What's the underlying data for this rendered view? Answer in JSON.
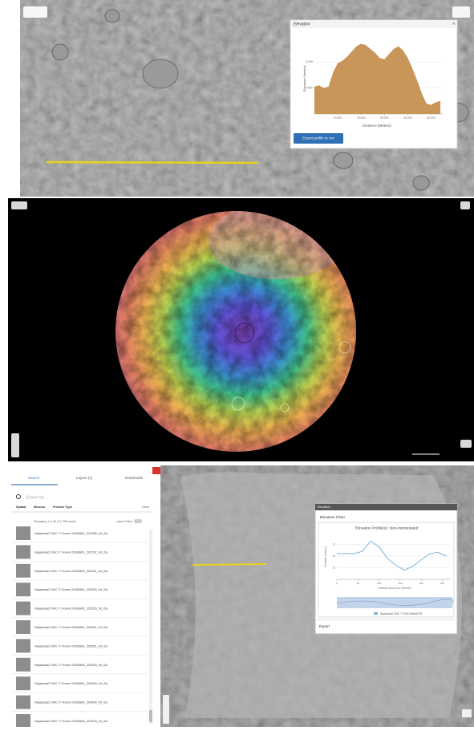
{
  "top_panel": {
    "popup": {
      "title": "Elevation",
      "chart": {
        "type": "area",
        "y_label": "Elevation (Meters)",
        "x_label": "Distance (Meters)",
        "color": "#c9965a",
        "x": [
          0,
          2000,
          4000,
          6000,
          8000,
          10000,
          12000,
          14000,
          16000,
          18000,
          20000,
          22000,
          24000,
          26000,
          28000,
          30000,
          32000,
          34000,
          36000,
          38000,
          40000,
          42000,
          44000,
          46000,
          48000,
          50000,
          52000,
          54000
        ],
        "values": [
          4100,
          4200,
          4000,
          4100,
          5200,
          5900,
          6100,
          6400,
          6800,
          7200,
          7400,
          7300,
          7000,
          6700,
          6300,
          6200,
          6600,
          7000,
          7200,
          6900,
          6300,
          5500,
          4600,
          3600,
          2800,
          2700,
          2900,
          3000
        ],
        "xlim": [
          0,
          55000
        ],
        "ylim": [
          2000,
          7800
        ],
        "xticks": [
          {
            "value": 10000,
            "label": "10,000"
          },
          {
            "value": 20000,
            "label": "20,000"
          },
          {
            "value": 30000,
            "label": "30,000"
          },
          {
            "value": 40000,
            "label": "40,000"
          },
          {
            "value": 50000,
            "label": "50,000"
          }
        ],
        "yticks": [
          {
            "value": 4000,
            "label": "4,000"
          },
          {
            "value": 6000,
            "label": "6,000"
          }
        ]
      },
      "button": "Export profile to csv"
    }
  },
  "bottom_panel": {
    "sidebar": {
      "tabs": [
        "Search",
        "Layers (1)",
        "Downloads"
      ],
      "search_placeholder": "Search for...",
      "filters": [
        "Spatial",
        "Mission",
        "Product Type"
      ],
      "clear": "Clear",
      "results": "Displaying 1 to 25 of 1,798 results",
      "toggle": "Layer Follow",
      "items": [
        "Hayabusa2 ONC-T: Frame 20180801_201555_tvf_l2a",
        "Hayabusa2 ONC-T: Frame 20180801_202157_tvf_l2a",
        "Hayabusa2 ONC-T: Frame 20180801_202151_tvf_l2a",
        "Hayabusa2 ONC-T: Frame 20180801_202525_tvf_l2a",
        "Hayabusa2 ONC-T: Frame 20180801_202525_tvf_l2a",
        "Hayabusa2 ONC-T: Frame 20180801_202821_tvf_l2a",
        "Hayabusa2 ONC-T: Frame 20180801_202821_tvf_l2a",
        "Hayabusa2 ONC-T: Frame 20180801_202549_tvf_l2a",
        "Hayabusa2 ONC-T: Frame 20180801_202549_tvf_l2a",
        "Hayabusa2 ONC-T: Frame 20180801_203445_tvf_l2a",
        "Hayabusa2 ONC-T: Frame 20180801_203445_tvf_l2a"
      ]
    },
    "popup": {
      "header": "Elevation",
      "tab": "Elevation Chart",
      "chart": {
        "type": "line",
        "title": "Elevation Profile(s): Non-Interpolated",
        "y_label": "Elevation (Meters)",
        "x_label": "Distance Along Line (Meters)",
        "legend": "Hayabusa2 ONC-T: 2018-SelectDTM",
        "color": "#7fb3d5",
        "x": [
          0,
          20,
          40,
          60,
          80,
          100,
          120,
          140,
          160,
          180,
          200,
          220,
          240,
          260
        ],
        "values": [
          55,
          56,
          55,
          60,
          82,
          70,
          45,
          30,
          20,
          28,
          42,
          55,
          58,
          50
        ],
        "xlim": [
          0,
          270
        ],
        "ylim": [
          0,
          100
        ],
        "xticks": [
          0,
          50,
          100,
          150,
          200,
          250
        ],
        "yticks": [
          25,
          50,
          75
        ]
      },
      "export": "Export"
    }
  }
}
